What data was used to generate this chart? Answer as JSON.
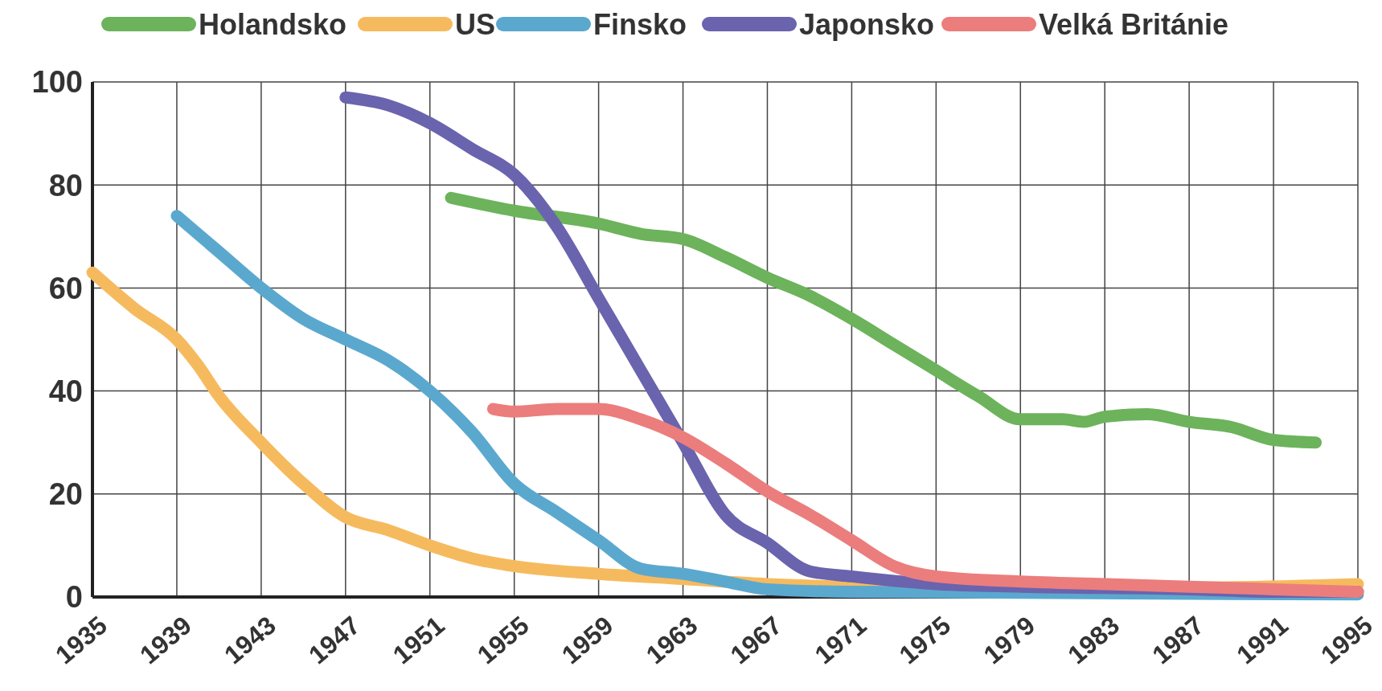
{
  "chart_data": {
    "type": "line",
    "xlim": [
      1935,
      1995
    ],
    "xticks": [
      1935,
      1939,
      1943,
      1947,
      1951,
      1955,
      1959,
      1963,
      1967,
      1971,
      1975,
      1979,
      1983,
      1987,
      1991,
      1995
    ],
    "ylim": [
      0,
      100
    ],
    "yticks": [
      0,
      20,
      40,
      60,
      80,
      100
    ],
    "grid": true,
    "legend": "top",
    "line_style": "solid",
    "series": [
      {
        "name": "Holandsko",
        "color": "#6cb35c",
        "x": [
          1952,
          1955,
          1959,
          1961,
          1963,
          1965,
          1967,
          1969,
          1971,
          1973,
          1975,
          1977,
          1979,
          1981,
          1982,
          1983,
          1985,
          1987,
          1989,
          1991,
          1993
        ],
        "values": [
          77.5,
          75,
          72.5,
          70.5,
          69.5,
          66,
          62,
          58.5,
          54,
          49,
          44,
          39,
          34.5,
          34.5,
          34,
          35,
          35.5,
          34,
          33,
          30.5,
          30
        ]
      },
      {
        "name": "US",
        "color": "#f6ba5e",
        "x": [
          1935,
          1937,
          1939,
          1940,
          1941,
          1943,
          1945,
          1947,
          1949,
          1951,
          1953,
          1955,
          1959,
          1963,
          1967,
          1971,
          1979,
          1987,
          1995
        ],
        "values": [
          63,
          56,
          50,
          45,
          39,
          30,
          22,
          15.5,
          13,
          10,
          7.5,
          6,
          4.5,
          3.5,
          2.5,
          2,
          1.8,
          1.8,
          2.5
        ]
      },
      {
        "name": "Finsko",
        "color": "#5ba8cf",
        "x": [
          1939,
          1941,
          1943,
          1945,
          1947,
          1949,
          1951,
          1953,
          1955,
          1957,
          1959,
          1961,
          1963,
          1965,
          1967,
          1971,
          1995
        ],
        "values": [
          74,
          67,
          60,
          54,
          50,
          46,
          40,
          32,
          22,
          16.5,
          11,
          5.5,
          4.5,
          3,
          1.5,
          1,
          0.5
        ]
      },
      {
        "name": "Japonsko",
        "color": "#6a63ae",
        "x": [
          1947,
          1949,
          1951,
          1953,
          1955,
          1957,
          1959,
          1961,
          1963,
          1965,
          1967,
          1969,
          1971,
          1975,
          1979,
          1987,
          1991,
          1995
        ],
        "values": [
          97,
          95.5,
          92,
          87,
          82,
          72,
          58,
          44,
          30,
          16,
          10.5,
          5,
          4,
          2.5,
          2,
          1.5,
          1,
          1
        ]
      },
      {
        "name": "Velká Británie",
        "color": "#ec7d7d",
        "x": [
          1954,
          1955,
          1957,
          1959,
          1961,
          1963,
          1965,
          1967,
          1969,
          1971,
          1973,
          1975,
          1979,
          1983,
          1987,
          1991,
          1995
        ],
        "values": [
          36.5,
          36,
          36.5,
          36.5,
          34.5,
          31,
          26,
          20.5,
          16,
          11,
          6,
          4,
          3,
          2.5,
          2,
          1.5,
          1
        ]
      }
    ]
  }
}
